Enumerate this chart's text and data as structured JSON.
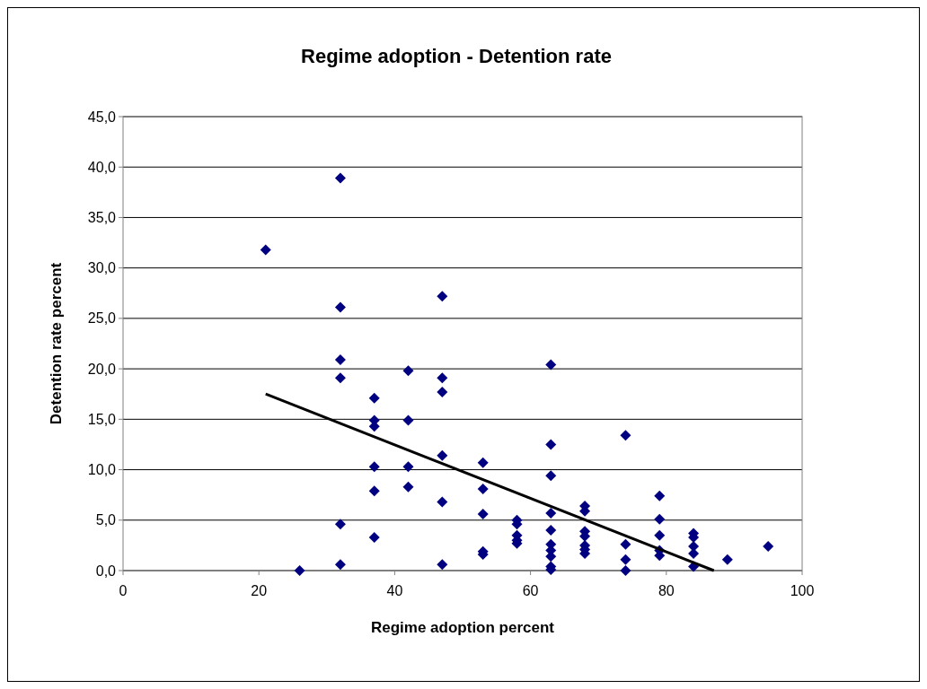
{
  "chart_data": {
    "type": "scatter",
    "title": "Regime adoption - Detention rate",
    "xlabel": "Regime adoption percent",
    "ylabel": "Detention rate percent",
    "xlim": [
      0,
      100
    ],
    "xticks": [
      0,
      20,
      40,
      60,
      80,
      100
    ],
    "ylim": [
      0,
      45
    ],
    "yticks": [
      {
        "value": 0,
        "label": "0,0"
      },
      {
        "value": 5,
        "label": "5,0"
      },
      {
        "value": 10,
        "label": "10,0"
      },
      {
        "value": 15,
        "label": "15,0"
      },
      {
        "value": 20,
        "label": "20,0"
      },
      {
        "value": 25,
        "label": "25,0"
      },
      {
        "value": 30,
        "label": "30,0"
      },
      {
        "value": 35,
        "label": "35,0"
      },
      {
        "value": 40,
        "label": "40,0"
      },
      {
        "value": 45,
        "label": "45,0"
      }
    ],
    "grid": "y",
    "series": [
      {
        "marker": "diamond",
        "color": "#000080",
        "x": [
          21,
          26,
          32,
          32,
          32,
          32,
          32,
          32,
          37,
          37,
          37,
          37,
          37,
          37,
          42,
          42,
          42,
          42,
          47,
          47,
          47,
          47,
          47,
          47,
          53,
          53,
          53,
          53,
          53,
          58,
          58,
          58,
          58,
          58,
          63,
          63,
          63,
          63,
          63,
          63,
          63,
          63,
          63,
          63,
          68,
          68,
          68,
          68,
          68,
          68,
          68,
          74,
          74,
          74,
          74,
          79,
          79,
          79,
          79,
          79,
          84,
          84,
          84,
          84,
          84,
          89,
          95
        ],
        "values": [
          31.8,
          0.0,
          38.9,
          26.1,
          20.9,
          19.1,
          4.6,
          0.6,
          17.1,
          14.9,
          14.3,
          10.3,
          7.9,
          3.3,
          19.8,
          14.9,
          10.3,
          8.3,
          27.2,
          19.1,
          17.7,
          11.4,
          6.8,
          0.6,
          10.7,
          8.1,
          5.6,
          1.9,
          1.6,
          5.0,
          4.6,
          3.5,
          3.0,
          2.7,
          20.4,
          12.5,
          9.4,
          5.7,
          4.0,
          2.6,
          2.0,
          1.4,
          0.4,
          0.1,
          6.4,
          5.9,
          3.9,
          3.4,
          2.5,
          2.1,
          1.7,
          13.4,
          2.6,
          1.1,
          0.0,
          7.4,
          5.1,
          3.5,
          2.0,
          1.5,
          3.7,
          3.3,
          2.4,
          1.7,
          0.4,
          1.1,
          2.4
        ]
      },
      {
        "type": "line",
        "color": "#000000",
        "x": [
          21,
          87
        ],
        "values": [
          17.5,
          0
        ],
        "line_style": "solid"
      }
    ]
  }
}
